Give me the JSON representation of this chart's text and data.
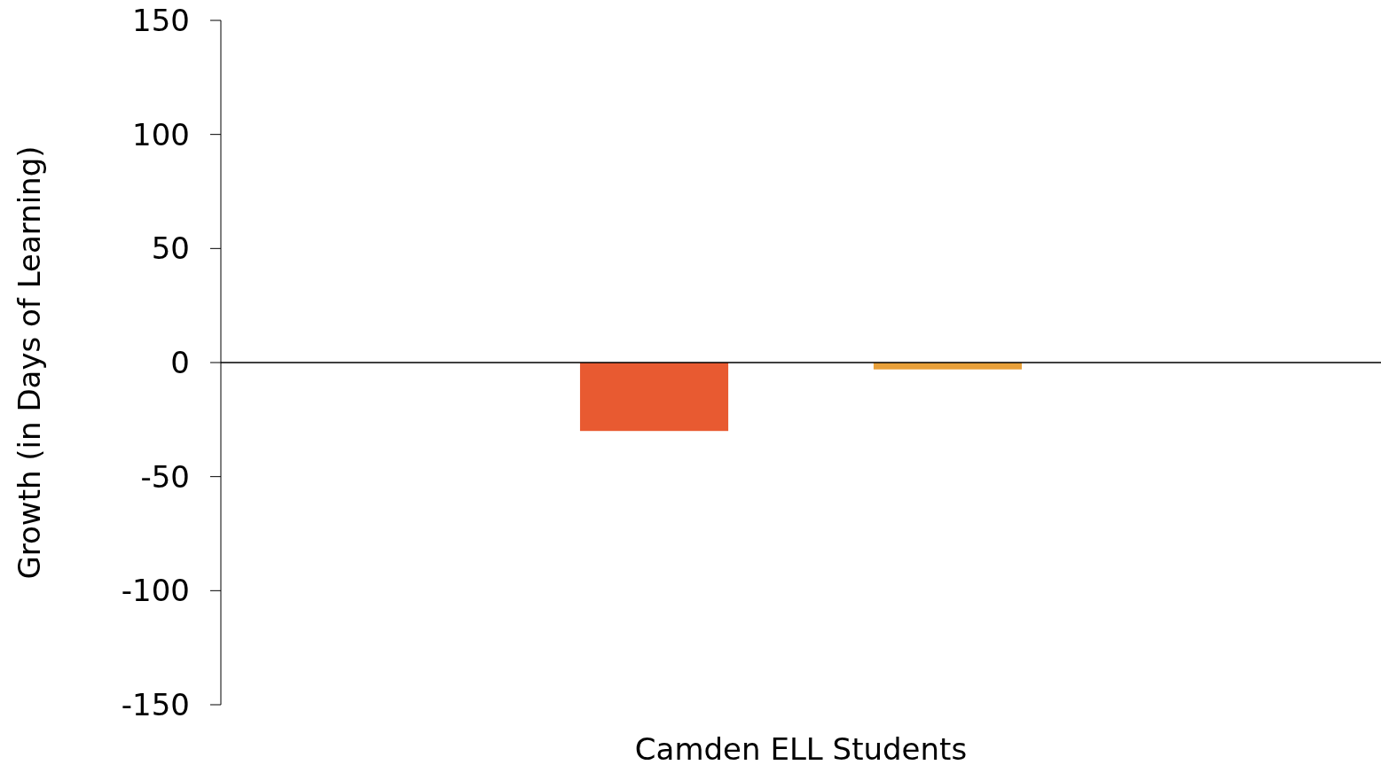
{
  "chart_data": {
    "type": "bar",
    "ylabel": "Growth (in Days of Learning)",
    "categories": [
      "Camden ELL Students"
    ],
    "series": [
      {
        "color": "#e85a31",
        "values": [
          -30
        ]
      },
      {
        "color": "#e8a03a",
        "values": [
          -3
        ]
      }
    ],
    "ylim": [
      -150,
      150
    ],
    "yticks": [
      -150,
      -100,
      -50,
      0,
      50,
      100,
      150
    ]
  }
}
